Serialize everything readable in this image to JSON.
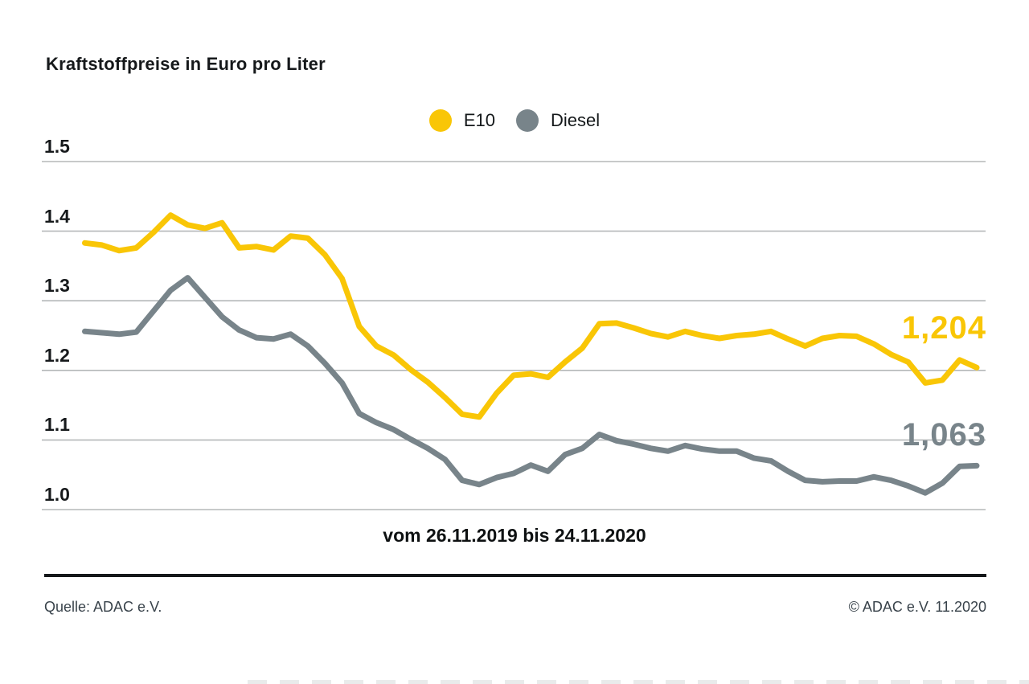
{
  "header": {
    "title": "Kraftstoffpreise in Euro pro Liter"
  },
  "legend": {
    "items": [
      {
        "label": "E10",
        "color": "#F9C606"
      },
      {
        "label": "Diesel",
        "color": "#78848A"
      }
    ]
  },
  "chart_data": {
    "type": "line",
    "title": "Kraftstoffpreise in Euro pro Liter",
    "x_label": "vom 26.11.2019 bis 24.11.2020",
    "x_range": [
      "26.11.2019",
      "24.11.2020"
    ],
    "x_interval": "weekly",
    "ylim": [
      1.0,
      1.5
    ],
    "y_ticks": [
      "1.5",
      "1.4",
      "1.3",
      "1.2",
      "1.1",
      "1.0"
    ],
    "grid": "horizontal",
    "legend_position": "top-center",
    "gridline_color": "#b5b8b9",
    "series": [
      {
        "name": "E10",
        "color": "#F9C606",
        "end_label": "1,204",
        "final_value": 1.204,
        "values": [
          1.383,
          1.38,
          1.372,
          1.376,
          1.398,
          1.423,
          1.409,
          1.404,
          1.412,
          1.376,
          1.378,
          1.373,
          1.393,
          1.39,
          1.366,
          1.332,
          1.263,
          1.235,
          1.222,
          1.201,
          1.183,
          1.161,
          1.137,
          1.133,
          1.167,
          1.193,
          1.195,
          1.19,
          1.212,
          1.232,
          1.267,
          1.268,
          1.261,
          1.253,
          1.248,
          1.256,
          1.25,
          1.246,
          1.25,
          1.252,
          1.256,
          1.245,
          1.235,
          1.246,
          1.25,
          1.249,
          1.238,
          1.223,
          1.212,
          1.182,
          1.186,
          1.215,
          1.204
        ]
      },
      {
        "name": "Diesel",
        "color": "#78848A",
        "end_label": "1,063",
        "final_value": 1.063,
        "values": [
          1.256,
          1.254,
          1.252,
          1.255,
          1.285,
          1.315,
          1.333,
          1.305,
          1.277,
          1.258,
          1.247,
          1.245,
          1.252,
          1.235,
          1.21,
          1.182,
          1.138,
          1.125,
          1.115,
          1.101,
          1.088,
          1.072,
          1.042,
          1.036,
          1.046,
          1.052,
          1.064,
          1.055,
          1.079,
          1.088,
          1.108,
          1.099,
          1.094,
          1.088,
          1.084,
          1.092,
          1.087,
          1.084,
          1.084,
          1.074,
          1.07,
          1.055,
          1.042,
          1.04,
          1.041,
          1.041,
          1.047,
          1.042,
          1.034,
          1.024,
          1.038,
          1.062,
          1.063
        ]
      }
    ]
  },
  "footer": {
    "source": "Quelle: ADAC e.V.",
    "copyright": "© ADAC e.V. 11.2020"
  }
}
